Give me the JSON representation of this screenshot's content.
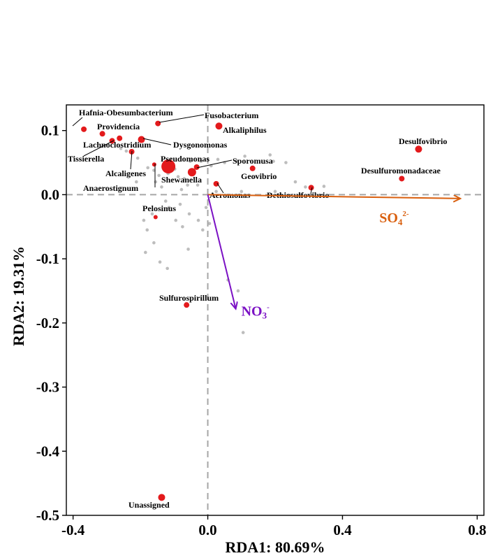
{
  "chart_data": {
    "type": "scatter",
    "title": "",
    "xlabel": "RDA1: 80.69%",
    "ylabel": "RDA2: 19.31%",
    "xlim": [
      -0.42,
      0.82
    ],
    "ylim": [
      -0.5,
      0.14
    ],
    "xticks": [
      -0.4,
      0.0,
      0.4,
      0.8
    ],
    "xtick_labels": [
      "-0.4",
      "0.0",
      "0.4",
      "0.8"
    ],
    "yticks": [
      0.1,
      0.0,
      -0.1,
      -0.2,
      -0.3,
      -0.4,
      -0.5
    ],
    "ytick_labels": [
      "0.1",
      "0.0",
      "-0.1",
      "-0.2",
      "-0.3",
      "-0.4",
      "-0.5"
    ],
    "colors": {
      "taxa": "#e31a1c",
      "otu": "#bdbdbd",
      "so4": "#d95f0e",
      "no3": "#7b11c4",
      "origin_lines": "#a6a6a6"
    },
    "env_vectors": [
      {
        "name": "SO4",
        "base": "SO",
        "sub": "4",
        "sup": "2-",
        "x": 0.75,
        "y": -0.006,
        "color": "#d95f0e"
      },
      {
        "name": "NO3",
        "base": "NO",
        "sub": "3",
        "sup": "-",
        "x": 0.083,
        "y": -0.178,
        "color": "#7b11c4"
      }
    ],
    "taxa": [
      {
        "name": "Hafnia-Obesumbacterium",
        "x": -0.368,
        "y": 0.102,
        "size": 4
      },
      {
        "name": "Fusobacterium",
        "x": -0.148,
        "y": 0.111,
        "size": 4
      },
      {
        "name": "Alkaliphilus",
        "x": 0.033,
        "y": 0.107,
        "size": 5
      },
      {
        "name": "Providencia",
        "x": -0.313,
        "y": 0.095,
        "size": 4
      },
      {
        "name": "Lachnoclostridium",
        "x": -0.262,
        "y": 0.088,
        "size": 4
      },
      {
        "name": "Dysgonomonas",
        "x": -0.197,
        "y": 0.086,
        "size": 5
      },
      {
        "name": "Tissierella",
        "x": -0.284,
        "y": 0.084,
        "size": 4
      },
      {
        "name": "Alcaligenes",
        "x": -0.226,
        "y": 0.067,
        "size": 4
      },
      {
        "name": "Desulfovibrio",
        "x": 0.626,
        "y": 0.071,
        "size": 5
      },
      {
        "name": "Pseudomonas",
        "x": -0.117,
        "y": 0.044,
        "size": 10
      },
      {
        "name": "Sporomusa",
        "x": -0.033,
        "y": 0.043,
        "size": 4
      },
      {
        "name": "Shewanella",
        "x": -0.047,
        "y": 0.035,
        "size": 6
      },
      {
        "name": "Geovibrio",
        "x": 0.133,
        "y": 0.041,
        "size": 4
      },
      {
        "name": "Anaerostignum",
        "x": -0.159,
        "y": 0.047,
        "size": 3
      },
      {
        "name": "Desulfuromonadaceae",
        "x": 0.576,
        "y": 0.025,
        "size": 4
      },
      {
        "name": "Aeromonas",
        "x": 0.025,
        "y": 0.017,
        "size": 4
      },
      {
        "name": "Dethiosulfovibrio",
        "x": 0.307,
        "y": 0.011,
        "size": 4
      },
      {
        "name": "Pelosinus",
        "x": -0.155,
        "y": -0.035,
        "size": 3
      },
      {
        "name": "Sulfurospirillum",
        "x": -0.063,
        "y": -0.172,
        "size": 4
      },
      {
        "name": "Unassigned",
        "x": -0.137,
        "y": -0.472,
        "size": 5
      }
    ],
    "otus": [
      [
        -0.258,
        0.072
      ],
      [
        -0.242,
        0.068
      ],
      [
        -0.208,
        0.057
      ],
      [
        -0.178,
        0.042
      ],
      [
        -0.16,
        0.038
      ],
      [
        -0.145,
        0.03
      ],
      [
        -0.118,
        0.033
      ],
      [
        -0.098,
        0.04
      ],
      [
        -0.088,
        0.028
      ],
      [
        -0.07,
        0.025
      ],
      [
        -0.06,
        0.015
      ],
      [
        -0.078,
        0.008
      ],
      [
        -0.052,
        0.052
      ],
      [
        -0.02,
        0.052
      ],
      [
        0.01,
        0.045
      ],
      [
        0.03,
        0.055
      ],
      [
        0.05,
        0.05
      ],
      [
        0.085,
        0.052
      ],
      [
        0.11,
        0.06
      ],
      [
        0.142,
        0.028
      ],
      [
        0.185,
        0.062
      ],
      [
        0.195,
        0.052
      ],
      [
        0.232,
        0.05
      ],
      [
        0.26,
        0.02
      ],
      [
        0.29,
        0.012
      ],
      [
        0.345,
        0.013
      ],
      [
        0.2,
        0.005
      ],
      [
        0.1,
        0.005
      ],
      [
        0.025,
        0.005
      ],
      [
        -0.03,
        0.015
      ],
      [
        -0.155,
        0.02
      ],
      [
        -0.137,
        0.012
      ],
      [
        -0.125,
        -0.01
      ],
      [
        -0.115,
        -0.02
      ],
      [
        -0.165,
        -0.03
      ],
      [
        -0.095,
        -0.04
      ],
      [
        -0.055,
        -0.03
      ],
      [
        -0.028,
        -0.04
      ],
      [
        -0.18,
        -0.055
      ],
      [
        -0.16,
        -0.075
      ],
      [
        -0.075,
        -0.05
      ],
      [
        -0.015,
        -0.055
      ],
      [
        -0.185,
        -0.09
      ],
      [
        -0.058,
        -0.085
      ],
      [
        -0.142,
        -0.105
      ],
      [
        -0.12,
        -0.115
      ],
      [
        0.06,
        -0.133
      ],
      [
        0.09,
        -0.15
      ],
      [
        0.105,
        -0.215
      ],
      [
        -0.082,
        -0.015
      ],
      [
        -0.005,
        -0.02
      ],
      [
        0.005,
        -0.045
      ],
      [
        -0.19,
        -0.04
      ],
      [
        -0.212,
        0.02
      ]
    ]
  }
}
